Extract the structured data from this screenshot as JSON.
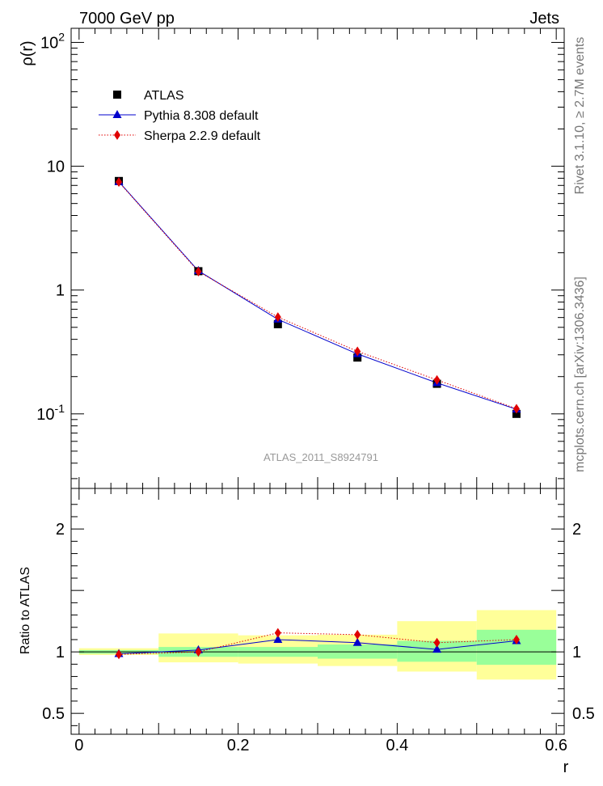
{
  "header": {
    "left": "7000 GeV pp",
    "right": "Jets"
  },
  "side_texts": {
    "rivet": "Rivet 3.1.10, ≥ 2.7M events",
    "mcplots": "mcplots.cern.ch [arXiv:1306.3436]"
  },
  "analysis_id": "ATLAS_2011_S8924791",
  "colors": {
    "atlas": "#000000",
    "pythia": "#0000cc",
    "sherpa": "#e00000",
    "band_inner": "#99ff99",
    "band_outer": "#ffff99"
  },
  "chart_data": [
    {
      "type": "line",
      "ylabel": "ρ(r)",
      "yscale": "log",
      "ylim": [
        0.025,
        130
      ],
      "xlim": [
        -0.01,
        0.61
      ],
      "y_ticklabels": [
        "10^-1",
        "1",
        "10",
        "10^2"
      ],
      "legend": {
        "placement": "top-left",
        "entries": [
          "ATLAS",
          "Pythia 8.308 default",
          "Sherpa 2.2.9 default"
        ]
      },
      "x": [
        0.05,
        0.15,
        0.25,
        0.35,
        0.45,
        0.55
      ],
      "series": [
        {
          "name": "ATLAS",
          "style": "square-markers",
          "values": [
            7.6,
            1.42,
            0.53,
            0.285,
            0.175,
            0.1
          ]
        },
        {
          "name": "Pythia 8.308 default",
          "style": "solid-line-triangles",
          "values": [
            7.5,
            1.43,
            0.58,
            0.305,
            0.178,
            0.109
          ]
        },
        {
          "name": "Sherpa 2.2.9 default",
          "style": "dotted-line-diamonds",
          "values": [
            7.45,
            1.41,
            0.605,
            0.32,
            0.188,
            0.11
          ]
        }
      ]
    },
    {
      "type": "line",
      "ylabel": "Ratio to ATLAS",
      "xlabel": "r",
      "ylim": [
        0.33,
        2.33
      ],
      "xlim": [
        -0.01,
        0.61
      ],
      "x_ticklabels": [
        "0",
        "0.2",
        "0.4",
        "0.6"
      ],
      "y_ticklabels": [
        "0.5",
        "1",
        "2"
      ],
      "x": [
        0.05,
        0.15,
        0.25,
        0.35,
        0.45,
        0.55
      ],
      "bin_edges": [
        0.0,
        0.1,
        0.2,
        0.3,
        0.4,
        0.5,
        0.6
      ],
      "band_inner": [
        [
          0.985,
          1.015
        ],
        [
          0.96,
          1.04
        ],
        [
          0.96,
          1.04
        ],
        [
          0.945,
          1.06
        ],
        [
          0.92,
          1.09
        ],
        [
          0.895,
          1.18
        ]
      ],
      "band_outer": [
        [
          0.975,
          1.03
        ],
        [
          0.915,
          1.15
        ],
        [
          0.905,
          1.135
        ],
        [
          0.885,
          1.14
        ],
        [
          0.84,
          1.25
        ],
        [
          0.775,
          1.34
        ]
      ],
      "series": [
        {
          "name": "Pythia 8.308 default",
          "values": [
            0.985,
            1.015,
            1.1,
            1.075,
            1.02,
            1.09
          ]
        },
        {
          "name": "Sherpa 2.2.9 default",
          "values": [
            0.98,
            1.0,
            1.155,
            1.14,
            1.075,
            1.1
          ]
        }
      ]
    }
  ]
}
